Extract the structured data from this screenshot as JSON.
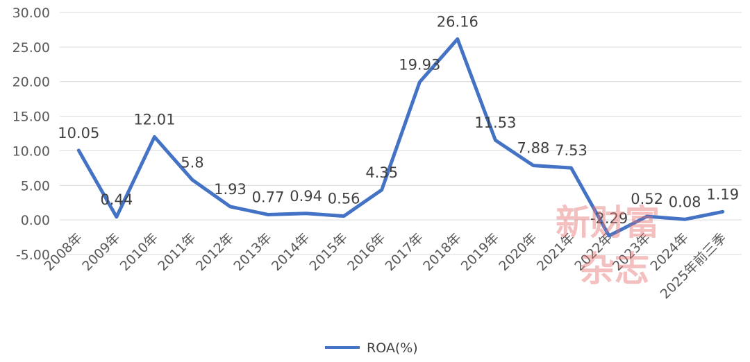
{
  "chart_data": {
    "type": "line",
    "categories": [
      "2008年",
      "2009年",
      "2010年",
      "2011年",
      "2012年",
      "2013年",
      "2014年",
      "2015年",
      "2016年",
      "2017年",
      "2018年",
      "2019年",
      "2020年",
      "2021年",
      "2022年",
      "2023年",
      "2024年",
      "2025年前三季"
    ],
    "series": [
      {
        "name": "ROA(%)",
        "values": [
          10.05,
          0.44,
          12.01,
          5.8,
          1.93,
          0.77,
          0.94,
          0.56,
          4.35,
          19.93,
          26.16,
          11.53,
          7.88,
          7.53,
          -2.29,
          0.52,
          0.08,
          1.19
        ]
      }
    ],
    "data_labels": [
      "10.05",
      "0.44",
      "12.01",
      "5.8",
      "1.93",
      "0.77",
      "0.94",
      "0.56",
      "4.35",
      "19.93",
      "26.16",
      "11.53",
      "7.88",
      "7.53",
      "-2.29",
      "0.52",
      "0.08",
      "1.19"
    ],
    "y_ticks": [
      "-5.00",
      "0.00",
      "5.00",
      "10.00",
      "15.00",
      "20.00",
      "25.00",
      "30.00"
    ],
    "ylim": [
      -5,
      30
    ],
    "grid": true,
    "legend_position": "bottom",
    "line_color": "#4472C4"
  },
  "watermark": {
    "line1": "新财富",
    "line2": "杂志"
  }
}
